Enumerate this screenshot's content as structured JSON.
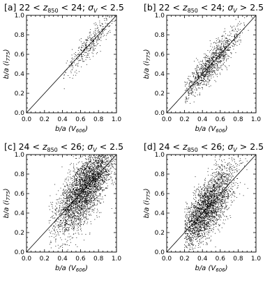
{
  "chart_data": [
    {
      "type": "scatter",
      "title": "[a] 22 < z₈₅₀ < 24; σᵥ < 2.5",
      "title_parts": [
        "[a] 22 < ",
        "z",
        "850",
        " < 24; ",
        "σ",
        "V",
        " < 2.5"
      ],
      "xlabel": "b/a (V606)",
      "xlabel_parts": [
        "b/a (",
        "V",
        "606",
        ")"
      ],
      "ylabel": "b/a (i775)",
      "ylabel_parts": [
        "b/a (",
        "i",
        "775",
        ")"
      ],
      "xlim": [
        0.0,
        1.0
      ],
      "ylim": [
        0.0,
        1.0
      ],
      "xticks": [
        "0.0",
        "0.2",
        "0.4",
        "0.6",
        "0.8",
        "1.0"
      ],
      "yticks": [
        "0.0",
        "0.2",
        "0.4",
        "0.6",
        "0.8",
        "1.0"
      ],
      "reference_line": {
        "x": [
          0.0,
          1.0
        ],
        "y": [
          0.0,
          1.0
        ]
      },
      "points_summary": {
        "n": 380,
        "x_mean": 0.7,
        "x_sd": 0.14,
        "x_range": [
          0.38,
          0.99
        ],
        "y_scatter": 0.05
      }
    },
    {
      "type": "scatter",
      "title": "[b] 22 < z₈₅₀ < 24; σᵥ > 2.5",
      "title_parts": [
        "[b] 22 < ",
        "z",
        "850",
        " < 24; ",
        "σ",
        "V",
        " > 2.5"
      ],
      "xlabel": "b/a (V606)",
      "xlabel_parts": [
        "b/a (",
        "V",
        "606",
        ")"
      ],
      "ylabel": "b/a (i775)",
      "ylabel_parts": [
        "b/a (",
        "i",
        "775",
        ")"
      ],
      "xlim": [
        0.0,
        1.0
      ],
      "ylim": [
        0.0,
        1.0
      ],
      "xticks": [
        "0.0",
        "0.2",
        "0.4",
        "0.6",
        "0.8",
        "1.0"
      ],
      "yticks": [
        "0.0",
        "0.2",
        "0.4",
        "0.6",
        "0.8",
        "1.0"
      ],
      "reference_line": {
        "x": [
          0.0,
          1.0
        ],
        "y": [
          0.0,
          1.0
        ]
      },
      "points_summary": {
        "n": 1100,
        "x_mean": 0.5,
        "x_sd": 0.16,
        "x_range": [
          0.2,
          0.99
        ],
        "y_scatter": 0.06
      }
    },
    {
      "type": "scatter",
      "title": "[c] 24 < z₈₅₀ < 26; σᵥ < 2.5",
      "title_parts": [
        "[c] 24 < ",
        "z",
        "850",
        " < 26; ",
        "σ",
        "V",
        " < 2.5"
      ],
      "xlabel": "b/a (V606)",
      "xlabel_parts": [
        "b/a (",
        "V",
        "606",
        ")"
      ],
      "ylabel": "b/a (i775)",
      "ylabel_parts": [
        "b/a (",
        "i",
        "775",
        ")"
      ],
      "xlim": [
        0.0,
        1.0
      ],
      "ylim": [
        0.0,
        1.0
      ],
      "xticks": [
        "0.0",
        "0.2",
        "0.4",
        "0.6",
        "0.8",
        "1.0"
      ],
      "yticks": [
        "0.0",
        "0.2",
        "0.4",
        "0.6",
        "0.8",
        "1.0"
      ],
      "reference_line": {
        "x": [
          0.0,
          1.0
        ],
        "y": [
          0.0,
          1.0
        ]
      },
      "points_summary": {
        "n": 3200,
        "x_mean": 0.65,
        "x_sd": 0.17,
        "x_range": [
          0.25,
          0.99
        ],
        "y_scatter": 0.12
      }
    },
    {
      "type": "scatter",
      "title": "[d] 24 < z₈₅₀ < 26; σᵥ > 2.5",
      "title_parts": [
        "[d] 24 < ",
        "z",
        "850",
        " < 26; ",
        "σ",
        "V",
        " > 2.5"
      ],
      "xlabel": "b/a (V606)",
      "xlabel_parts": [
        "b/a (",
        "V",
        "606",
        ")"
      ],
      "ylabel": "b/a (i775)",
      "ylabel_parts": [
        "b/a (",
        "i",
        "775",
        ")"
      ],
      "xlim": [
        0.0,
        1.0
      ],
      "ylim": [
        0.0,
        1.0
      ],
      "xticks": [
        "0.0",
        "0.2",
        "0.4",
        "0.6",
        "0.8",
        "1.0"
      ],
      "yticks": [
        "0.0",
        "0.2",
        "0.4",
        "0.6",
        "0.8",
        "1.0"
      ],
      "reference_line": {
        "x": [
          0.0,
          1.0
        ],
        "y": [
          0.0,
          1.0
        ]
      },
      "points_summary": {
        "n": 2600,
        "x_mean": 0.45,
        "x_sd": 0.15,
        "x_range": [
          0.2,
          0.99
        ],
        "y_scatter": 0.11
      }
    }
  ]
}
